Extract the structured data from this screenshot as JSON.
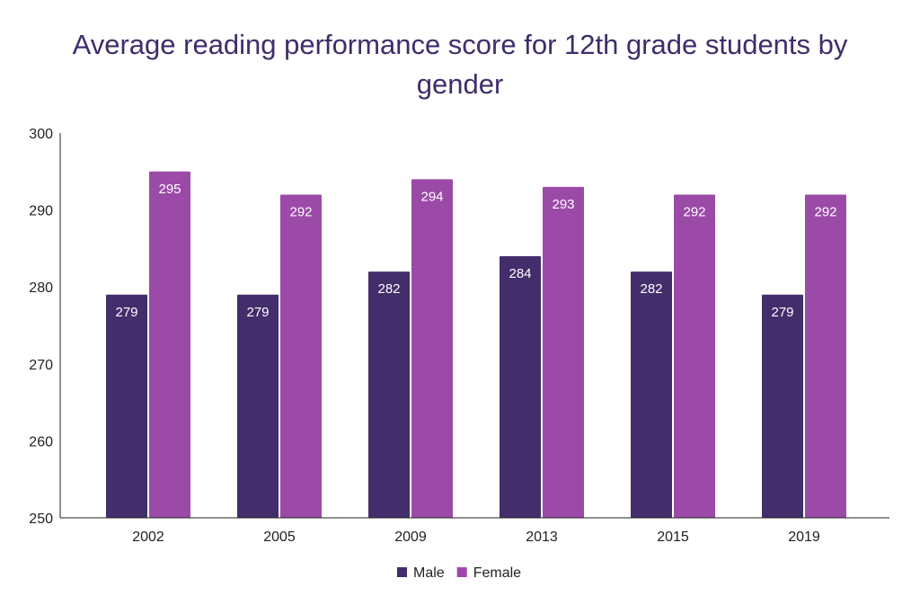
{
  "chart_data": {
    "type": "bar",
    "title": "Average reading performance score for 12th grade students by gender",
    "categories": [
      "2002",
      "2005",
      "2009",
      "2013",
      "2015",
      "2019"
    ],
    "series": [
      {
        "name": "Male",
        "color": "#432d6b",
        "values": [
          279,
          279,
          282,
          284,
          282,
          279
        ]
      },
      {
        "name": "Female",
        "color": "#9c4aa8",
        "values": [
          295,
          292,
          294,
          293,
          292,
          292
        ]
      }
    ],
    "xlabel": "",
    "ylabel": "",
    "ylim": [
      250,
      300
    ],
    "yticks": [
      250,
      260,
      270,
      280,
      290,
      300
    ],
    "grid": false,
    "legend": "bottom",
    "data_labels": true
  }
}
